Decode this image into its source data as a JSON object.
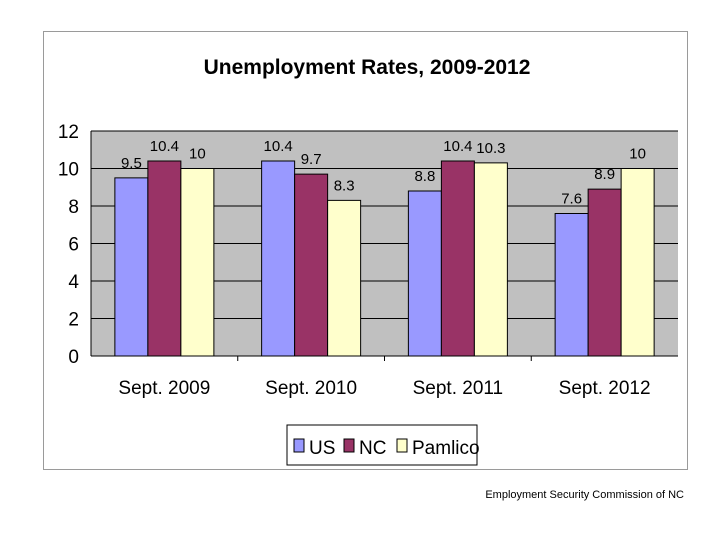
{
  "chart_data": {
    "type": "bar",
    "title": "Unemployment Rates, 2009-2012",
    "categories": [
      "Sept. 2009",
      "Sept. 2010",
      "Sept. 2011",
      "Sept. 2012"
    ],
    "series": [
      {
        "name": "US",
        "values": [
          9.5,
          10.4,
          8.8,
          7.6
        ],
        "color": "#9999ff"
      },
      {
        "name": "NC",
        "values": [
          10.4,
          9.7,
          10.4,
          8.9
        ],
        "color": "#993366"
      },
      {
        "name": "Pamlico",
        "values": [
          10,
          8.3,
          10.3,
          10
        ],
        "color": "#ffffcc"
      }
    ],
    "data_labels": [
      [
        "9.5",
        "10.4",
        "8.8",
        "7.6"
      ],
      [
        "10.4",
        "9.7",
        "10.4",
        "8.9"
      ],
      [
        "10",
        "8.3",
        "10.3",
        "10"
      ]
    ],
    "ylim": [
      0,
      12
    ],
    "yticks": [
      "0",
      "2",
      "4",
      "6",
      "8",
      "10",
      "12"
    ],
    "grid": true,
    "plot_background": "#c0c0c0",
    "legend_position": "bottom"
  },
  "footer": {
    "source": "Employment Security Commission of NC"
  }
}
